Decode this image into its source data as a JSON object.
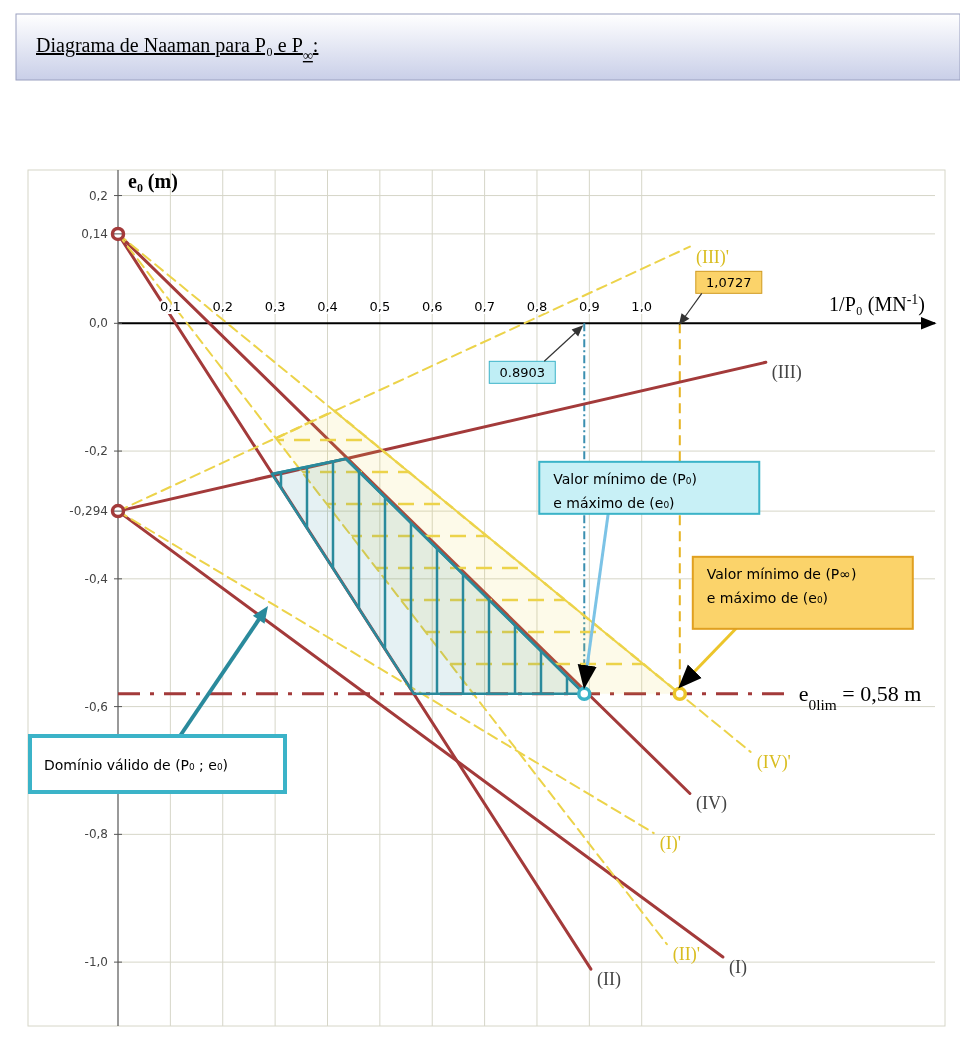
{
  "chart_data": {
    "type": "line",
    "title": "Diagrama de Naaman para P₀ e P$_{∞}$:",
    "xlabel": "1/P₀ (MN$^{-1}$)",
    "ylabel": "e₀ (m)",
    "xlim": [
      0,
      1.56
    ],
    "ylim": [
      -1.1,
      0.24
    ],
    "xticks": [
      {
        "value": 0.1,
        "label": "0,1"
      },
      {
        "value": 0.2,
        "label": "0,2"
      },
      {
        "value": 0.3,
        "label": "0,3"
      },
      {
        "value": 0.4,
        "label": "0,4"
      },
      {
        "value": 0.5,
        "label": "0,5"
      },
      {
        "value": 0.6,
        "label": "0,6"
      },
      {
        "value": 0.7,
        "label": "0,7"
      },
      {
        "value": 0.8,
        "label": "0,8"
      },
      {
        "value": 0.9,
        "label": "0,9"
      },
      {
        "value": 1.0,
        "label": "1,0"
      }
    ],
    "yticks": [
      {
        "value": 0.2,
        "label": "0,2"
      },
      {
        "value": 0.14,
        "label": "0,14"
      },
      {
        "value": 0,
        "label": "0,0"
      },
      {
        "value": -0.2,
        "label": "-0,2"
      },
      {
        "value": -0.294,
        "label": "-0,294"
      },
      {
        "value": -0.4,
        "label": "-0,4"
      },
      {
        "value": -0.6,
        "label": "-0,6"
      },
      {
        "value": -0.8,
        "label": "-0,8"
      },
      {
        "value": -1.0,
        "label": "-1,0"
      }
    ],
    "grid": true,
    "legend": false,
    "series": [
      {
        "name": "(I)",
        "type": "line",
        "color": "#a33a3a",
        "line_style": "solid",
        "x": [
          0,
          1.155
        ],
        "values": [
          -0.294,
          -0.992
        ]
      },
      {
        "name": "(II)",
        "type": "line",
        "color": "#a33a3a",
        "line_style": "solid",
        "x": [
          0,
          0.903
        ],
        "values": [
          0.14,
          -1.011
        ]
      },
      {
        "name": "(III)",
        "type": "line",
        "color": "#a33a3a",
        "line_style": "solid",
        "x": [
          0,
          1.237
        ],
        "values": [
          -0.294,
          -0.061
        ]
      },
      {
        "name": "(IV)",
        "type": "line",
        "color": "#a33a3a",
        "line_style": "solid",
        "x": [
          0,
          1.092
        ],
        "values": [
          0.14,
          -0.736
        ]
      },
      {
        "name": "(I)'",
        "type": "line",
        "color": "#ecd34a",
        "line_style": "dashed",
        "x": [
          0,
          1.023
        ],
        "values": [
          -0.294,
          -0.798
        ]
      },
      {
        "name": "(II)'",
        "type": "line",
        "color": "#ecd34a",
        "line_style": "dashed",
        "x": [
          0,
          1.048
        ],
        "values": [
          0.14,
          -0.972
        ]
      },
      {
        "name": "(III)'",
        "type": "line",
        "color": "#ecd34a",
        "line_style": "dashed",
        "x": [
          0,
          1.092
        ],
        "values": [
          -0.294,
          0.12
        ]
      },
      {
        "name": "(IV)'",
        "type": "line",
        "color": "#ecd34a",
        "line_style": "dashed",
        "x": [
          0,
          1.208
        ],
        "values": [
          0.14,
          -0.671
        ]
      },
      {
        "type": "line",
        "color": "#ecd34a",
        "line_style": "dashed",
        "x": [
          0.301,
          0.413,
          0.679,
          1.0727
        ],
        "values": [
          -0.18,
          -0.137,
          -0.316,
          -0.58
        ],
        "lower": [
          -0.18,
          -0.298,
          -0.58,
          -0.58
        ],
        "upper": [
          -0.18,
          -0.137,
          -0.316,
          -0.58
        ]
      },
      {
        "type": "line",
        "color": "#2a8a9c",
        "line_style": "solid",
        "x": [
          0.294,
          0.435,
          0.565,
          0.8903
        ],
        "values": [
          -0.236,
          -0.212,
          -0.317,
          -0.58
        ],
        "lower": [
          -0.236,
          -0.415,
          -0.58,
          -0.58
        ],
        "upper": [
          -0.236,
          -0.212,
          -0.317,
          -0.58
        ]
      },
      {
        "type": "scatter",
        "color": "#a33a3a",
        "marker": "circle",
        "x": [
          0,
          0
        ],
        "values": [
          0.14,
          -0.294
        ]
      },
      {
        "type": "scatter",
        "color": "#3bb3c8",
        "marker": "circle",
        "x": [
          0.8903
        ],
        "values": [
          -0.58
        ]
      },
      {
        "type": "scatter",
        "color": "#ecc52a",
        "marker": "circle",
        "x": [
          1.0727
        ],
        "values": [
          -0.58
        ]
      }
    ],
    "ref_lines": [
      {
        "axis": "y",
        "value": -0.58,
        "color": "#a33a3a",
        "line_style": "dashed"
      },
      {
        "axis": "x",
        "value": 0.8903,
        "label": "0.8903",
        "color": "#3a8fb0",
        "line_style": "dotted"
      },
      {
        "axis": "x",
        "value": 1.0727,
        "label": "1,0727",
        "color": "#e6b422",
        "line_style": "dashed"
      }
    ],
    "annotations": [
      {
        "text": "Valor mínimo de (P₀) e máximo de (e₀)",
        "x": 0.8903,
        "y": -0.58
      },
      {
        "text": "Valor mínimo de (P∞) e máximo de (e₀)",
        "x": 1.0727,
        "y": -0.58
      },
      "Domínio válido de (P₀ ; e₀)",
      "e$_{0lim}$ = 0,58 m"
    ]
  }
}
